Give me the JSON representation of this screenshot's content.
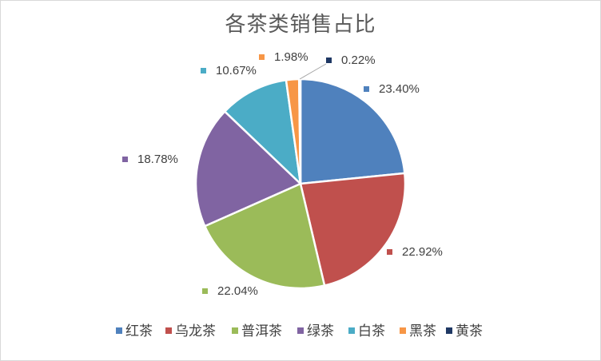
{
  "chart_data": {
    "type": "pie",
    "title": "各茶类销售占比",
    "categories": [
      "红茶",
      "乌龙茶",
      "普洱茶",
      "绿茶",
      "白茶",
      "黑茶",
      "黄茶"
    ],
    "values": [
      23.4,
      22.92,
      22.04,
      18.78,
      10.67,
      1.98,
      0.22
    ],
    "labels": [
      "23.40%",
      "22.92%",
      "22.04%",
      "18.78%",
      "10.67%",
      "1.98%",
      "0.22%"
    ],
    "colors": [
      "#4f81bd",
      "#c0504d",
      "#9bbb59",
      "#8064a2",
      "#4bacc6",
      "#f79646",
      "#1f3864"
    ],
    "legend_position": "bottom"
  }
}
